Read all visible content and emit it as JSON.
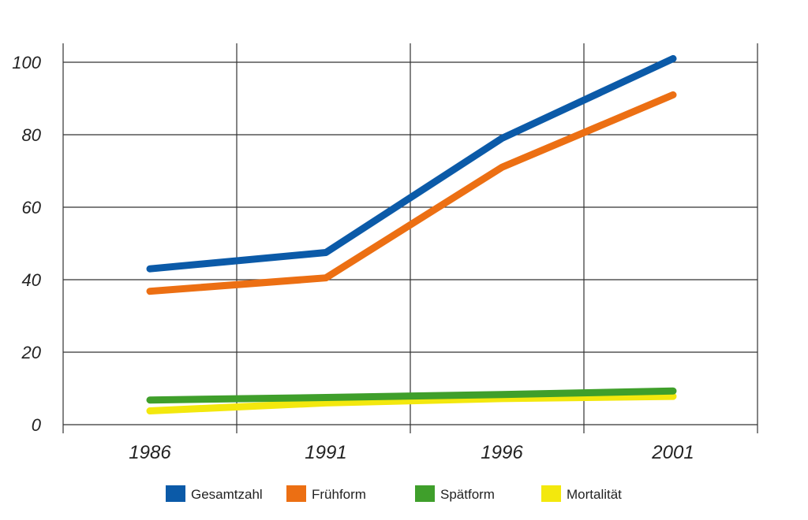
{
  "chart_data": {
    "type": "line",
    "x": [
      "1986",
      "1991",
      "1996",
      "2001"
    ],
    "series": [
      {
        "name": "Gesamtzahl",
        "color": "#0b5aa8",
        "values": [
          43,
          47.5,
          79,
          101
        ]
      },
      {
        "name": "Frühform",
        "color": "#ec6f13",
        "values": [
          36.8,
          40.5,
          71,
          91
        ]
      },
      {
        "name": "Spätform",
        "color": "#3f9f2b",
        "values": [
          6.8,
          7.5,
          8.3,
          9.3
        ]
      },
      {
        "name": "Mortalität",
        "color": "#f3e80d",
        "values": [
          3.8,
          6,
          7.2,
          7.8
        ]
      }
    ],
    "yticks": [
      0,
      20,
      40,
      60,
      80,
      100
    ],
    "ylim": [
      0,
      100
    ],
    "grid": true,
    "legend_position": "bottom"
  }
}
